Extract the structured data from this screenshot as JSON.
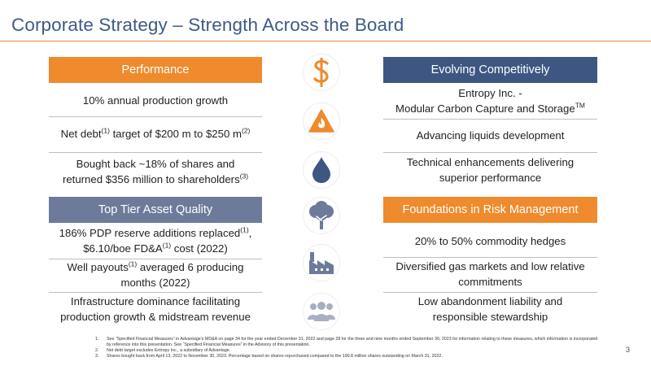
{
  "title": "Corporate Strategy – Strength Across the Board",
  "performance": {
    "header": "Performance",
    "items": [
      {
        "lines": [
          {
            "parts": [
              {
                "t": "10% annual production growth"
              }
            ]
          }
        ]
      },
      {
        "lines": [
          {
            "parts": [
              {
                "t": "Net debt"
              },
              {
                "sup": "(1)"
              },
              {
                "t": " target of $200 m to $250 m"
              },
              {
                "sup": "(2)"
              }
            ]
          }
        ]
      },
      {
        "lines": [
          {
            "parts": [
              {
                "t": "Bought back ~18% of shares and"
              }
            ]
          },
          {
            "parts": [
              {
                "t": "returned $356 million to shareholders"
              },
              {
                "sup": "(3)"
              }
            ]
          }
        ]
      }
    ]
  },
  "asset_quality": {
    "header": "Top Tier Asset Quality",
    "items": [
      {
        "lines": [
          {
            "parts": [
              {
                "t": "186% PDP reserve additions replaced"
              },
              {
                "sup": "(1)"
              },
              {
                "t": ","
              }
            ]
          },
          {
            "parts": [
              {
                "t": "$6.10/boe FD&A"
              },
              {
                "sup": "(1)"
              },
              {
                "t": " cost (2022)"
              }
            ]
          }
        ]
      },
      {
        "lines": [
          {
            "parts": [
              {
                "t": "Well payouts"
              },
              {
                "sup": "(1)"
              },
              {
                "t": " averaged 6 producing"
              }
            ]
          },
          {
            "parts": [
              {
                "t": "months (2022)"
              }
            ]
          }
        ]
      },
      {
        "lines": [
          {
            "parts": [
              {
                "t": "Infrastructure dominance facilitating"
              }
            ]
          },
          {
            "parts": [
              {
                "t": "production growth & midstream revenue"
              }
            ]
          }
        ]
      }
    ]
  },
  "evolving": {
    "header": "Evolving Competitively",
    "items": [
      {
        "lines": [
          {
            "parts": [
              {
                "t": "Entropy Inc. -"
              }
            ]
          },
          {
            "parts": [
              {
                "t": "Modular Carbon Capture and Storage"
              },
              {
                "sup": "TM"
              }
            ]
          }
        ]
      },
      {
        "lines": [
          {
            "parts": [
              {
                "t": "Advancing liquids development"
              }
            ]
          }
        ]
      },
      {
        "lines": [
          {
            "parts": [
              {
                "t": "Technical enhancements delivering"
              }
            ]
          },
          {
            "parts": [
              {
                "t": "superior performance"
              }
            ]
          }
        ]
      }
    ]
  },
  "risk_management": {
    "header": "Foundations in Risk Management",
    "items": [
      {
        "lines": [
          {
            "parts": [
              {
                "t": "20% to 50% commodity hedges"
              }
            ]
          }
        ]
      },
      {
        "lines": [
          {
            "parts": [
              {
                "t": "Diversified gas markets and low relative"
              }
            ]
          },
          {
            "parts": [
              {
                "t": "commitments"
              }
            ]
          }
        ]
      },
      {
        "lines": [
          {
            "parts": [
              {
                "t": "Low abandonment liability and"
              }
            ]
          },
          {
            "parts": [
              {
                "t": "responsible stewardship"
              }
            ]
          }
        ]
      }
    ]
  },
  "icons": [
    {
      "name": "dollar-icon",
      "color": "#ef8a2d"
    },
    {
      "name": "flame-icon",
      "color": "#ef8a2d"
    },
    {
      "name": "water-drop-icon",
      "color": "#3d5782"
    },
    {
      "name": "tree-icon",
      "color": "#6d7a99"
    },
    {
      "name": "factory-icon",
      "color": "#6d7a99"
    },
    {
      "name": "people-icon",
      "color": "#a8afc2"
    }
  ],
  "footnotes": [
    {
      "num": "1.",
      "text": "See “Specified Financial Measures” in Advantage’s MD&A on page 34 for the year ended December 31, 2022 and page 28 for the three and nine months ended September 30, 2023 for information relating to these measures, which information is incorporated by reference into this presentation. See “Specified Financial Measures” in the Advisory of this presentation."
    },
    {
      "num": "2.",
      "text": "Net debt target excludes Entropy Inc., a subsidiary of Advantage."
    },
    {
      "num": "3.",
      "text": "Shares bought back from April 13, 2022 to November 30, 2023. Percentage based on shares repurchased compared to the 190.8 million shares outstanding on March 31, 2022."
    }
  ],
  "page_number": "3",
  "colors": {
    "title": "#3e5a87",
    "accent_orange": "#ef8a2d",
    "navy": "#3d5782",
    "slate": "#6d7a99"
  }
}
